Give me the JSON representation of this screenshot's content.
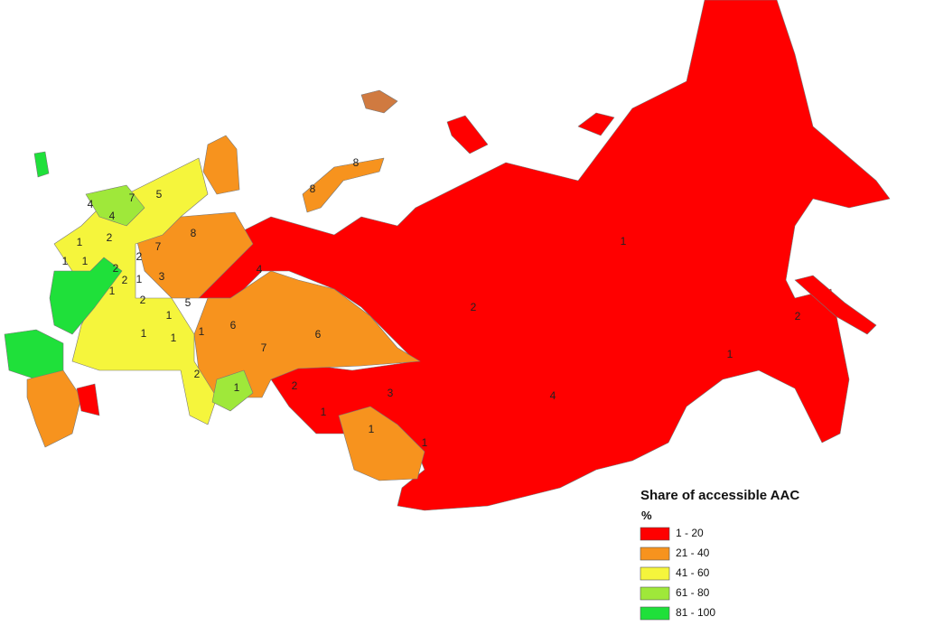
{
  "legend": {
    "title": "Share of accessible AAC",
    "unit": "%",
    "classes": [
      {
        "label": "1 - 20",
        "color": "#ff0000"
      },
      {
        "label": "21 - 40",
        "color": "#f7931e"
      },
      {
        "label": "41 - 60",
        "color": "#f5f53c"
      },
      {
        "label": "61 - 80",
        "color": "#9fe83a"
      },
      {
        "label": "81 - 100",
        "color": "#1fe03a"
      }
    ]
  },
  "region_labels": [
    8,
    8,
    5,
    7,
    4,
    4,
    8,
    2,
    1,
    7,
    1,
    2,
    1,
    1,
    2,
    4,
    3,
    1,
    2,
    1,
    2,
    5,
    2,
    1,
    2,
    6,
    1,
    1,
    6,
    1,
    7,
    1,
    2,
    2,
    1,
    3,
    4,
    1,
    1,
    1
  ]
}
